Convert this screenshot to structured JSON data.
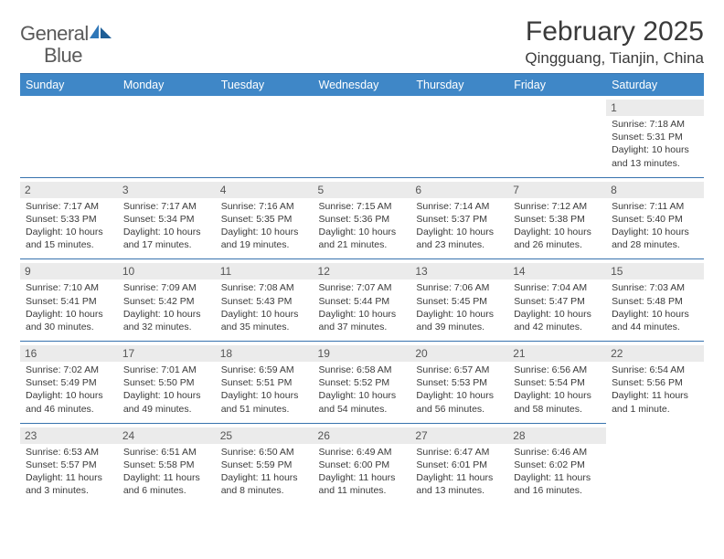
{
  "brand": {
    "text1": "General",
    "text2": "Blue"
  },
  "title": "February 2025",
  "location": "Qingguang, Tianjin, China",
  "colors": {
    "header_bar": "#3f87c7",
    "rule": "#3773ae",
    "daynum_bg": "#ebebeb",
    "text": "#3a3a3a",
    "logo_blue": "#2f77b8"
  },
  "days_of_week": [
    "Sunday",
    "Monday",
    "Tuesday",
    "Wednesday",
    "Thursday",
    "Friday",
    "Saturday"
  ],
  "weeks": [
    [
      null,
      null,
      null,
      null,
      null,
      null,
      {
        "n": "1",
        "sr": "Sunrise: 7:18 AM",
        "ss": "Sunset: 5:31 PM",
        "dl": "Daylight: 10 hours and 13 minutes."
      }
    ],
    [
      {
        "n": "2",
        "sr": "Sunrise: 7:17 AM",
        "ss": "Sunset: 5:33 PM",
        "dl": "Daylight: 10 hours and 15 minutes."
      },
      {
        "n": "3",
        "sr": "Sunrise: 7:17 AM",
        "ss": "Sunset: 5:34 PM",
        "dl": "Daylight: 10 hours and 17 minutes."
      },
      {
        "n": "4",
        "sr": "Sunrise: 7:16 AM",
        "ss": "Sunset: 5:35 PM",
        "dl": "Daylight: 10 hours and 19 minutes."
      },
      {
        "n": "5",
        "sr": "Sunrise: 7:15 AM",
        "ss": "Sunset: 5:36 PM",
        "dl": "Daylight: 10 hours and 21 minutes."
      },
      {
        "n": "6",
        "sr": "Sunrise: 7:14 AM",
        "ss": "Sunset: 5:37 PM",
        "dl": "Daylight: 10 hours and 23 minutes."
      },
      {
        "n": "7",
        "sr": "Sunrise: 7:12 AM",
        "ss": "Sunset: 5:38 PM",
        "dl": "Daylight: 10 hours and 26 minutes."
      },
      {
        "n": "8",
        "sr": "Sunrise: 7:11 AM",
        "ss": "Sunset: 5:40 PM",
        "dl": "Daylight: 10 hours and 28 minutes."
      }
    ],
    [
      {
        "n": "9",
        "sr": "Sunrise: 7:10 AM",
        "ss": "Sunset: 5:41 PM",
        "dl": "Daylight: 10 hours and 30 minutes."
      },
      {
        "n": "10",
        "sr": "Sunrise: 7:09 AM",
        "ss": "Sunset: 5:42 PM",
        "dl": "Daylight: 10 hours and 32 minutes."
      },
      {
        "n": "11",
        "sr": "Sunrise: 7:08 AM",
        "ss": "Sunset: 5:43 PM",
        "dl": "Daylight: 10 hours and 35 minutes."
      },
      {
        "n": "12",
        "sr": "Sunrise: 7:07 AM",
        "ss": "Sunset: 5:44 PM",
        "dl": "Daylight: 10 hours and 37 minutes."
      },
      {
        "n": "13",
        "sr": "Sunrise: 7:06 AM",
        "ss": "Sunset: 5:45 PM",
        "dl": "Daylight: 10 hours and 39 minutes."
      },
      {
        "n": "14",
        "sr": "Sunrise: 7:04 AM",
        "ss": "Sunset: 5:47 PM",
        "dl": "Daylight: 10 hours and 42 minutes."
      },
      {
        "n": "15",
        "sr": "Sunrise: 7:03 AM",
        "ss": "Sunset: 5:48 PM",
        "dl": "Daylight: 10 hours and 44 minutes."
      }
    ],
    [
      {
        "n": "16",
        "sr": "Sunrise: 7:02 AM",
        "ss": "Sunset: 5:49 PM",
        "dl": "Daylight: 10 hours and 46 minutes."
      },
      {
        "n": "17",
        "sr": "Sunrise: 7:01 AM",
        "ss": "Sunset: 5:50 PM",
        "dl": "Daylight: 10 hours and 49 minutes."
      },
      {
        "n": "18",
        "sr": "Sunrise: 6:59 AM",
        "ss": "Sunset: 5:51 PM",
        "dl": "Daylight: 10 hours and 51 minutes."
      },
      {
        "n": "19",
        "sr": "Sunrise: 6:58 AM",
        "ss": "Sunset: 5:52 PM",
        "dl": "Daylight: 10 hours and 54 minutes."
      },
      {
        "n": "20",
        "sr": "Sunrise: 6:57 AM",
        "ss": "Sunset: 5:53 PM",
        "dl": "Daylight: 10 hours and 56 minutes."
      },
      {
        "n": "21",
        "sr": "Sunrise: 6:56 AM",
        "ss": "Sunset: 5:54 PM",
        "dl": "Daylight: 10 hours and 58 minutes."
      },
      {
        "n": "22",
        "sr": "Sunrise: 6:54 AM",
        "ss": "Sunset: 5:56 PM",
        "dl": "Daylight: 11 hours and 1 minute."
      }
    ],
    [
      {
        "n": "23",
        "sr": "Sunrise: 6:53 AM",
        "ss": "Sunset: 5:57 PM",
        "dl": "Daylight: 11 hours and 3 minutes."
      },
      {
        "n": "24",
        "sr": "Sunrise: 6:51 AM",
        "ss": "Sunset: 5:58 PM",
        "dl": "Daylight: 11 hours and 6 minutes."
      },
      {
        "n": "25",
        "sr": "Sunrise: 6:50 AM",
        "ss": "Sunset: 5:59 PM",
        "dl": "Daylight: 11 hours and 8 minutes."
      },
      {
        "n": "26",
        "sr": "Sunrise: 6:49 AM",
        "ss": "Sunset: 6:00 PM",
        "dl": "Daylight: 11 hours and 11 minutes."
      },
      {
        "n": "27",
        "sr": "Sunrise: 6:47 AM",
        "ss": "Sunset: 6:01 PM",
        "dl": "Daylight: 11 hours and 13 minutes."
      },
      {
        "n": "28",
        "sr": "Sunrise: 6:46 AM",
        "ss": "Sunset: 6:02 PM",
        "dl": "Daylight: 11 hours and 16 minutes."
      },
      null
    ]
  ]
}
